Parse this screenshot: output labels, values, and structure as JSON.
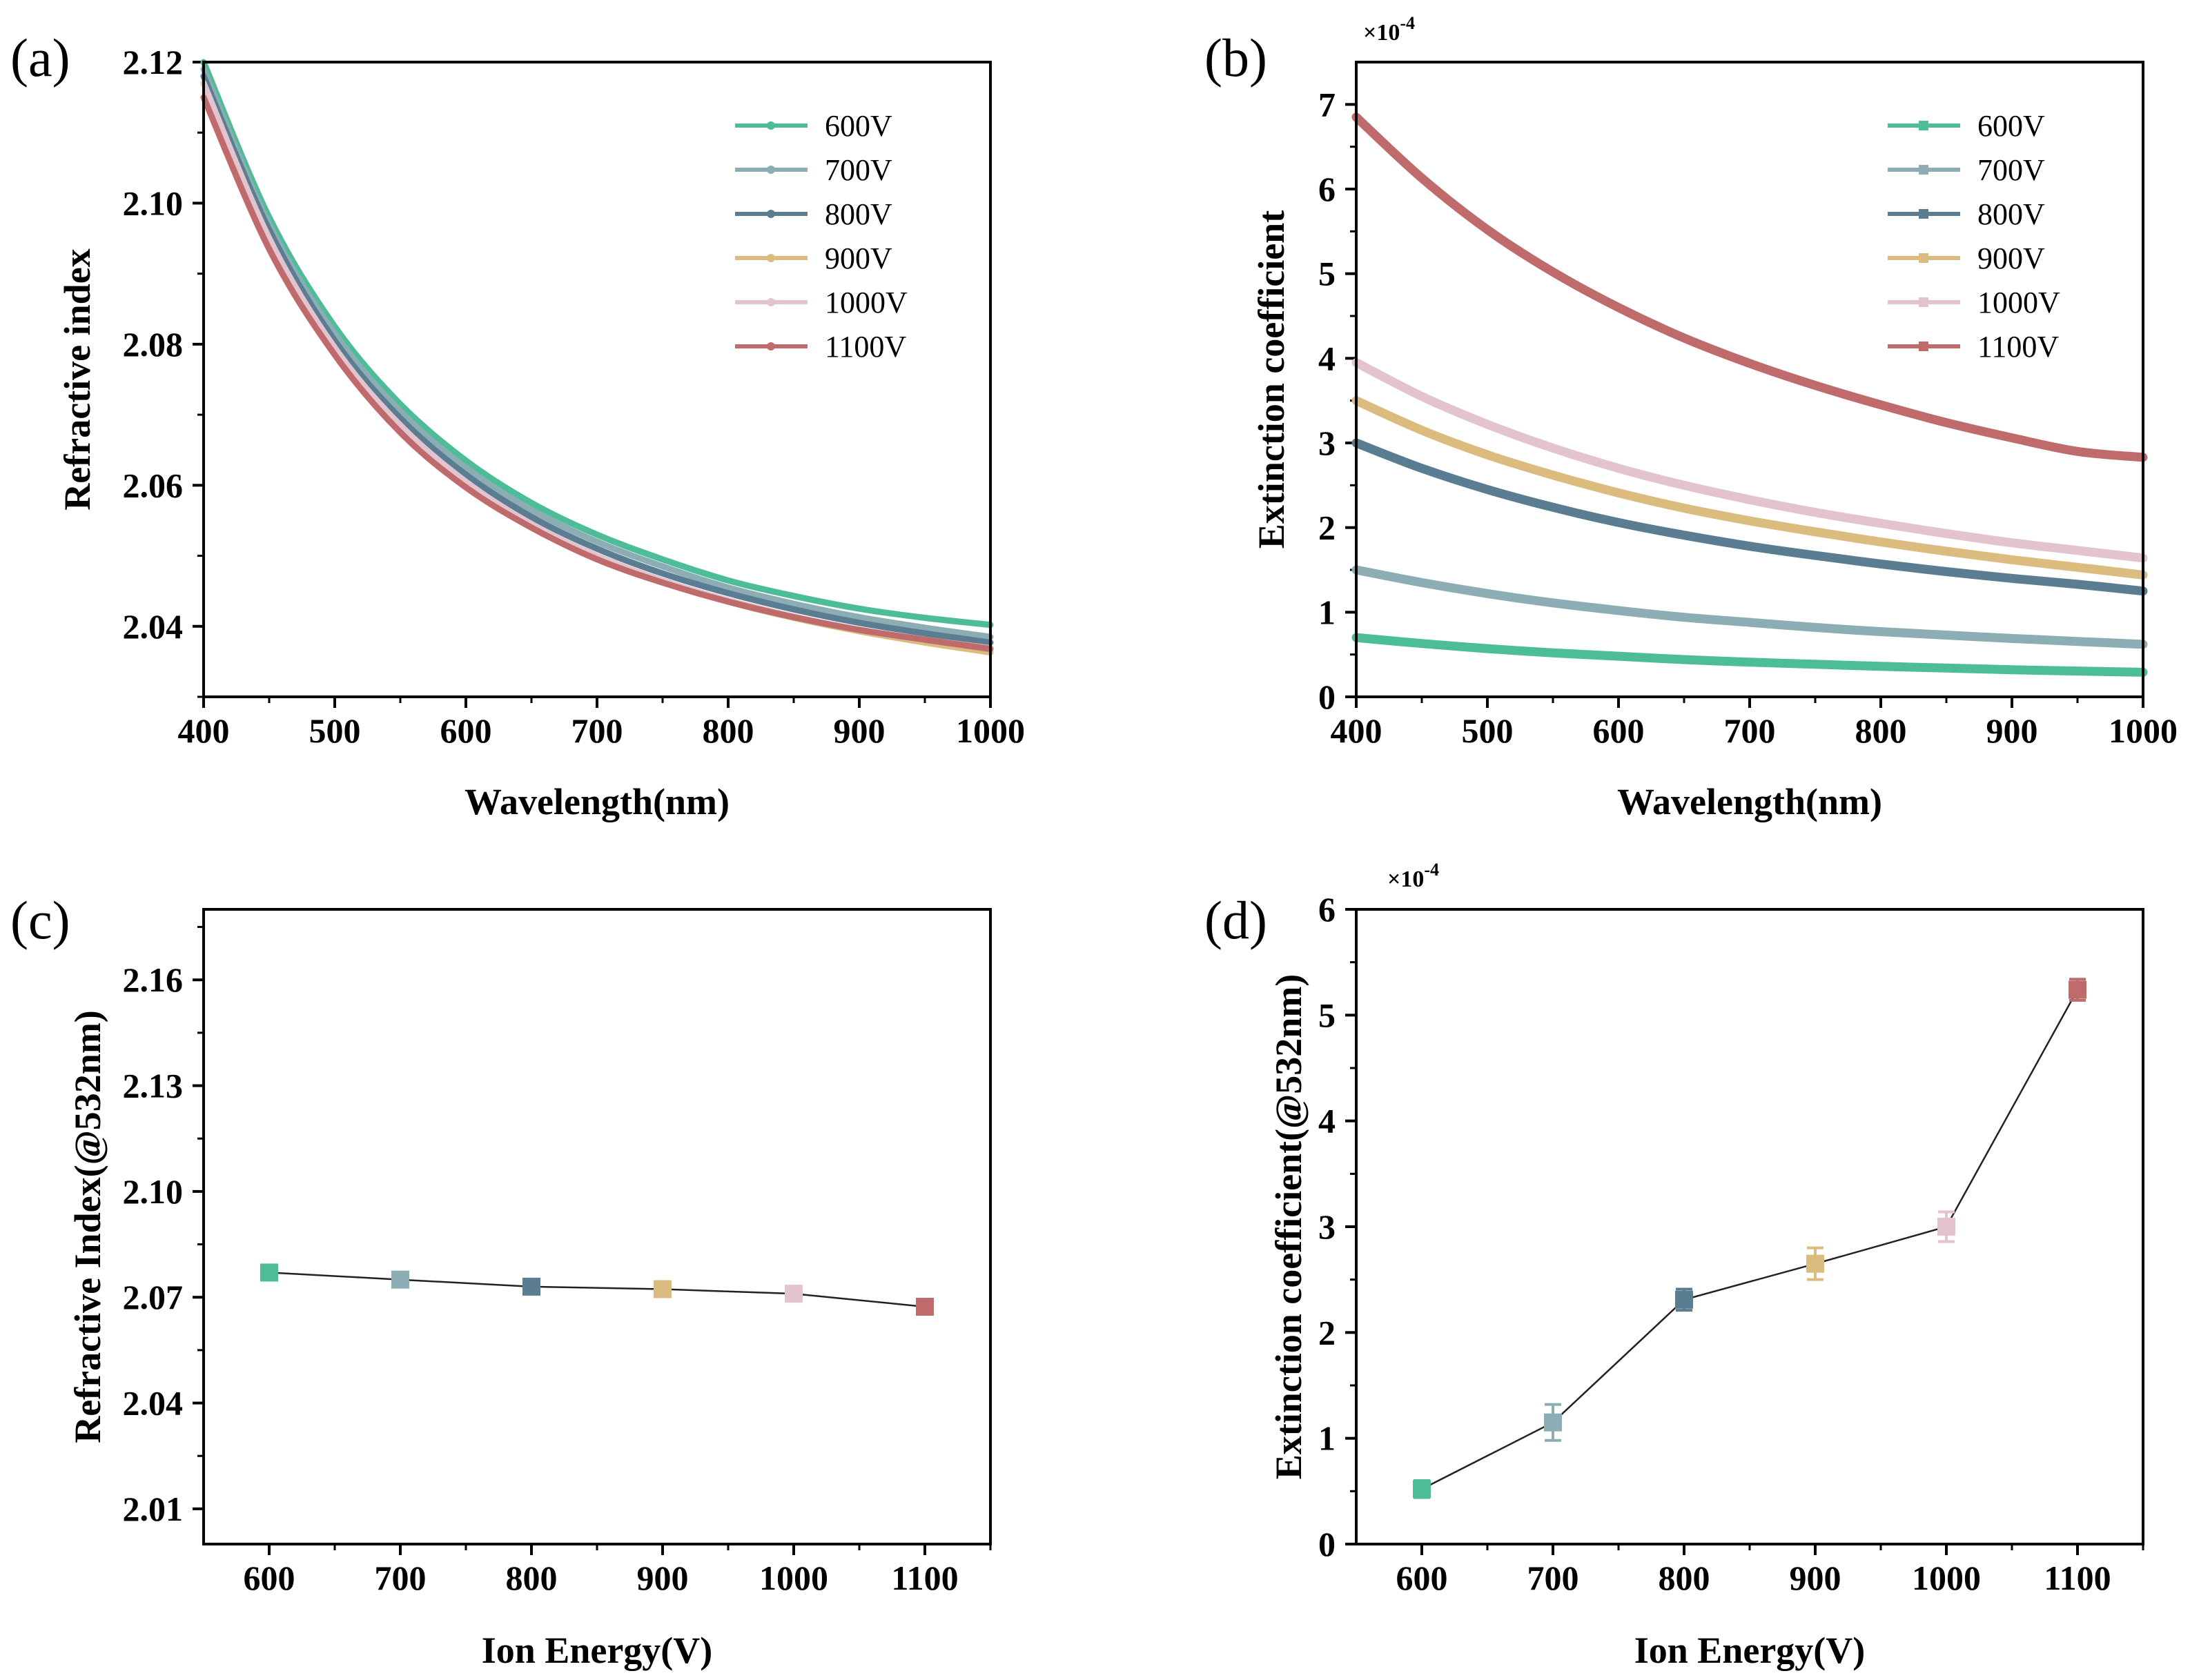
{
  "figure": "ion-energy-optical-constants",
  "series_colors": {
    "600V": "#4dbd98",
    "700V": "#8cadb4",
    "800V": "#5b7d91",
    "900V": "#dcbb7e",
    "1000V": "#e3c3cd",
    "1100V": "#bf6b6c"
  },
  "chart_data": [
    {
      "id": "a",
      "panel_label": "(a)",
      "type": "line",
      "xlabel": "Wavelength(nm)",
      "ylabel": "Refractive index",
      "xlim": [
        400,
        1000
      ],
      "ylim": [
        2.03,
        2.12
      ],
      "xticks": [
        "400",
        "500",
        "600",
        "700",
        "800",
        "900",
        "1000"
      ],
      "yticks": [
        "2.04",
        "2.06",
        "2.08",
        "2.10",
        "2.12"
      ],
      "legend_position": "top-right",
      "legend_marker": "circle",
      "x": [
        400,
        450,
        500,
        550,
        600,
        650,
        700,
        750,
        800,
        850,
        900,
        950,
        1000
      ],
      "series": [
        {
          "name": "600V",
          "values": [
            2.12,
            2.098,
            2.0825,
            2.0715,
            2.0635,
            2.0575,
            2.053,
            2.0495,
            2.0465,
            2.0443,
            2.0425,
            2.0412,
            2.0402
          ]
        },
        {
          "name": "700V",
          "values": [
            2.119,
            2.097,
            2.0815,
            2.0705,
            2.0625,
            2.0565,
            2.052,
            2.0485,
            2.0455,
            2.0432,
            2.0413,
            2.0398,
            2.0385
          ]
        },
        {
          "name": "800V",
          "values": [
            2.118,
            2.0962,
            2.0805,
            2.0695,
            2.0615,
            2.0555,
            2.051,
            2.0475,
            2.0447,
            2.0424,
            2.0405,
            2.039,
            2.0377
          ]
        },
        {
          "name": "900V",
          "values": [
            2.117,
            2.095,
            2.079,
            2.068,
            2.06,
            2.054,
            2.0497,
            2.0463,
            2.0435,
            2.0412,
            2.0393,
            2.0377,
            2.0363
          ]
        },
        {
          "name": "1000V",
          "values": [
            2.117,
            2.095,
            2.0795,
            2.0685,
            2.0605,
            2.0545,
            2.05,
            2.0465,
            2.0437,
            2.0414,
            2.0395,
            2.0381,
            2.0369
          ]
        },
        {
          "name": "1100V",
          "values": [
            2.115,
            2.0935,
            2.0785,
            2.0675,
            2.0597,
            2.054,
            2.0495,
            2.0462,
            2.0435,
            2.0413,
            2.0395,
            2.0381,
            2.0368
          ]
        }
      ]
    },
    {
      "id": "b",
      "panel_label": "(b)",
      "type": "line",
      "xlabel": "Wavelength(nm)",
      "ylabel": "Extinction coefficient",
      "multiplier": "×10",
      "multiplier_exp": "-4",
      "xlim": [
        400,
        1000
      ],
      "ylim": [
        0,
        7.5
      ],
      "xticks": [
        "400",
        "500",
        "600",
        "700",
        "800",
        "900",
        "1000"
      ],
      "yticks": [
        "0",
        "1",
        "2",
        "3",
        "4",
        "5",
        "6",
        "7"
      ],
      "legend_position": "top-right",
      "legend_marker": "square",
      "x": [
        400,
        450,
        500,
        550,
        600,
        650,
        700,
        750,
        800,
        850,
        900,
        950,
        1000
      ],
      "series": [
        {
          "name": "600V",
          "values": [
            0.7,
            0.63,
            0.57,
            0.52,
            0.48,
            0.44,
            0.41,
            0.385,
            0.36,
            0.34,
            0.32,
            0.305,
            0.29
          ]
        },
        {
          "name": "700V",
          "values": [
            1.5,
            1.35,
            1.22,
            1.11,
            1.02,
            0.94,
            0.88,
            0.82,
            0.77,
            0.73,
            0.69,
            0.655,
            0.62
          ]
        },
        {
          "name": "800V",
          "values": [
            3.0,
            2.7,
            2.45,
            2.24,
            2.06,
            1.91,
            1.78,
            1.67,
            1.57,
            1.48,
            1.4,
            1.33,
            1.25
          ]
        },
        {
          "name": "900V",
          "values": [
            3.5,
            3.15,
            2.86,
            2.62,
            2.41,
            2.23,
            2.08,
            1.95,
            1.83,
            1.72,
            1.62,
            1.53,
            1.44
          ]
        },
        {
          "name": "1000V",
          "values": [
            3.95,
            3.55,
            3.22,
            2.94,
            2.7,
            2.5,
            2.33,
            2.18,
            2.05,
            1.93,
            1.82,
            1.73,
            1.64
          ]
        },
        {
          "name": "1100V",
          "values": [
            6.85,
            6.13,
            5.52,
            5.02,
            4.6,
            4.24,
            3.94,
            3.68,
            3.45,
            3.24,
            3.06,
            2.9,
            2.83
          ]
        }
      ]
    },
    {
      "id": "c",
      "panel_label": "(c)",
      "type": "scatter",
      "xlabel": "Ion Energy(V)",
      "ylabel": "Refractive Index(@532nm)",
      "xlim": [
        550,
        1150
      ],
      "ylim": [
        2.0,
        2.18
      ],
      "xticks": [
        "600",
        "700",
        "800",
        "900",
        "1000",
        "1100"
      ],
      "yticks": [
        "2.01",
        "2.04",
        "2.07",
        "2.10",
        "2.13",
        "2.16"
      ],
      "connect_line": true,
      "x": [
        600,
        700,
        800,
        900,
        1000,
        1100
      ],
      "y": [
        2.077,
        2.075,
        2.073,
        2.0723,
        2.071,
        2.0673
      ],
      "point_series": [
        "600V",
        "700V",
        "800V",
        "900V",
        "1000V",
        "1100V"
      ]
    },
    {
      "id": "d",
      "panel_label": "(d)",
      "type": "scatter",
      "xlabel": "Ion Energy(V)",
      "ylabel": "Extinction coefficient(@532nm)",
      "multiplier": "×10",
      "multiplier_exp": "-4",
      "xlim": [
        550,
        1150
      ],
      "ylim": [
        0,
        6
      ],
      "xticks": [
        "600",
        "700",
        "800",
        "900",
        "1000",
        "1100"
      ],
      "yticks": [
        "0",
        "1",
        "2",
        "3",
        "4",
        "5",
        "6"
      ],
      "connect_line": true,
      "x": [
        600,
        700,
        800,
        900,
        1000,
        1100
      ],
      "y": [
        0.52,
        1.15,
        2.31,
        2.65,
        3.0,
        5.24
      ],
      "y_error": [
        0.08,
        0.17,
        0.1,
        0.15,
        0.14,
        0.1
      ],
      "point_series": [
        "600V",
        "700V",
        "800V",
        "900V",
        "1000V",
        "1100V"
      ]
    }
  ]
}
